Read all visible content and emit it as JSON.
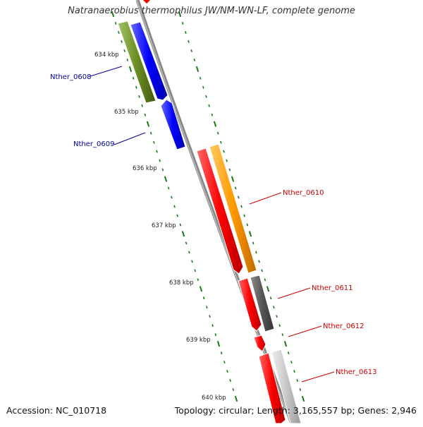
{
  "title": "Natranaerobius thermophilus JW/NM-WN-LF, complete genome",
  "footer": {
    "accession": "Accession: NC_010718",
    "summary": "Topology: circular; Length: 3,165,557 bp; Genes: 2,946"
  },
  "ticks": [
    {
      "label": "634 kbp"
    },
    {
      "label": "635 kbp"
    },
    {
      "label": "636 kbp"
    },
    {
      "label": "637 kbp"
    },
    {
      "label": "638 kbp"
    },
    {
      "label": "639 kbp"
    },
    {
      "label": "640 kbp"
    }
  ],
  "genes": [
    {
      "label": "Nther_0608",
      "color": "#00009a"
    },
    {
      "label": "Nther_0609",
      "color": "#00009a"
    },
    {
      "label": "Nther_0610",
      "color": "#cc0000"
    },
    {
      "label": "Nther_0611",
      "color": "#cc0000"
    },
    {
      "label": "Nther_0612",
      "color": "#cc0000"
    },
    {
      "label": "Nther_0613",
      "color": "#cc0000"
    }
  ],
  "colors": {
    "backbone": "#8a8a8a",
    "tick": "#1a7a1a",
    "cds_red": "#ee0000",
    "cds_blue": "#0000ee",
    "cds_olive": "#6b8e23",
    "cds_orange": "#ff9900",
    "cds_darkgray": "#555555",
    "cds_lightgray": "#c0c0c0"
  }
}
